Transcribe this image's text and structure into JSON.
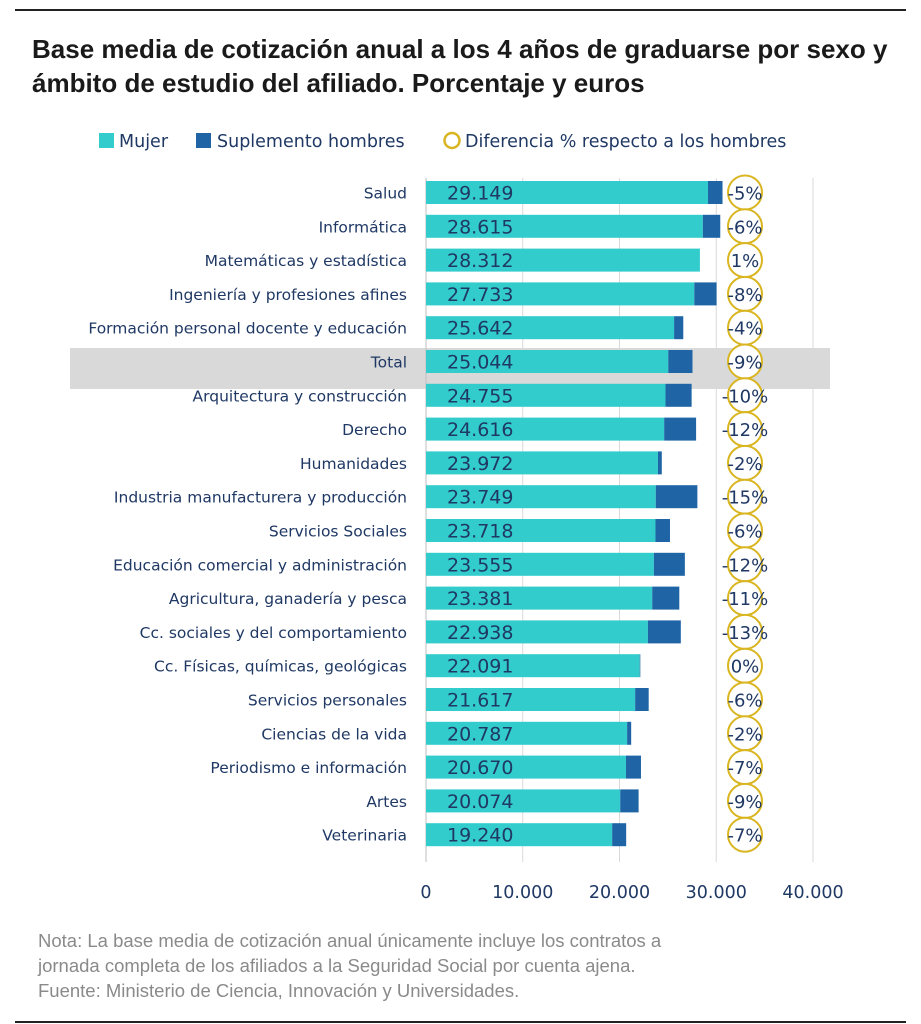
{
  "title": "Base media de cotización anual a los 4 años de graduarse por sexo y ámbito de estudio del afiliado. Porcentaje y euros",
  "legend": {
    "mujer": "Mujer",
    "suplemento": "Suplemento hombres",
    "diferencia": "Diferencia % respecto a los hombres"
  },
  "colors": {
    "mujer": "#33CCCC",
    "suplemento": "#1F65A6",
    "circle": "#D9B520",
    "highlight": "#D9D9D9",
    "text": "#1F3864"
  },
  "notes": {
    "line1": "Nota: La base media de cotización anual únicamente incluye los contratos a",
    "line2": "jornada completa de los afiliados a la Seguridad Social por cuenta ajena.",
    "line3": "Fuente: Ministerio de Ciencia, Innovación y Universidades."
  },
  "chart_data": {
    "type": "bar",
    "orientation": "horizontal",
    "stacked": true,
    "categories": [
      "Salud",
      "Informática",
      "Matemáticas y estadística",
      "Ingeniería y profesiones afines",
      "Formación personal docente y educación",
      "Total",
      "Arquitectura y construcción",
      "Derecho",
      "Humanidades",
      "Industria manufacturera y producción",
      "Servicios Sociales",
      "Educación comercial y administración",
      "Agricultura, ganadería y pesca",
      "Cc. sociales y del comportamiento",
      "Cc. Físicas, químicas, geológicas",
      "Servicios personales",
      "Ciencias de la vida",
      "Periodismo e información",
      "Artes",
      "Veterinaria"
    ],
    "highlight_category": "Total",
    "series": [
      {
        "name": "Mujer",
        "values": [
          29149,
          28615,
          28312,
          27733,
          25642,
          25044,
          24755,
          24616,
          23972,
          23749,
          23718,
          23555,
          23381,
          22938,
          22091,
          21617,
          20787,
          20670,
          20074,
          19240
        ],
        "labels": [
          "29.149",
          "28.615",
          "28.312",
          "27.733",
          "25.642",
          "25.044",
          "24.755",
          "24.616",
          "23.972",
          "23.749",
          "23.718",
          "23.555",
          "23.381",
          "22.938",
          "22.091",
          "21.617",
          "20.787",
          "20.670",
          "20.074",
          "19.240"
        ]
      },
      {
        "name": "Suplemento hombres",
        "values": [
          1500,
          1800,
          0,
          2300,
          950,
          2500,
          2700,
          3300,
          400,
          4300,
          1500,
          3200,
          2800,
          3400,
          60,
          1400,
          420,
          1550,
          1900,
          1450
        ]
      }
    ],
    "diferencia_pct": [
      "-5%",
      "-6%",
      "1%",
      "-8%",
      "-4%",
      "-9%",
      "-10%",
      "-12%",
      "-2%",
      "-15%",
      "-6%",
      "-12%",
      "-11%",
      "-13%",
      "0%",
      "-6%",
      "-2%",
      "-7%",
      "-9%",
      "-7%"
    ],
    "xlim": [
      0,
      40000
    ],
    "xticks": [
      0,
      10000,
      20000,
      30000,
      40000
    ],
    "xtick_labels": [
      "0",
      "10.000",
      "20.000",
      "30.000",
      "40.000"
    ],
    "grid": "vertical"
  }
}
